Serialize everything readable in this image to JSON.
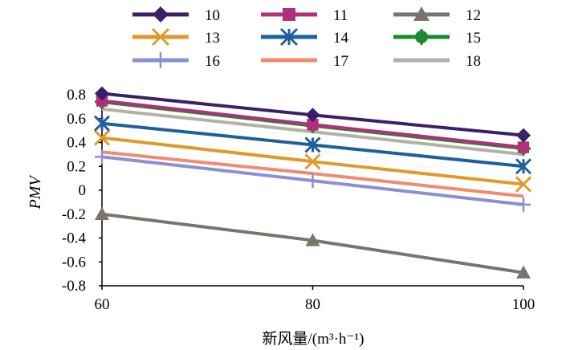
{
  "chart_data": {
    "type": "line",
    "title": "",
    "xlabel": "新风量/(m³·h⁻¹)",
    "ylabel": "PMV",
    "x": [
      60,
      80,
      100
    ],
    "xlim": [
      60,
      100
    ],
    "ylim": [
      -0.8,
      0.8
    ],
    "x_ticks": [
      "60",
      "80",
      "100"
    ],
    "y_ticks": [
      "0.8",
      "0.6",
      "0.4",
      "0.2",
      "0",
      "-0.2",
      "-0.4",
      "-0.6",
      "-0.8"
    ],
    "grid": false,
    "legend_position": "top",
    "series": [
      {
        "name": "10",
        "values": [
          0.81,
          0.63,
          0.46
        ],
        "color": "#3b1f6b",
        "marker": "diamond"
      },
      {
        "name": "11",
        "values": [
          0.75,
          0.55,
          0.36
        ],
        "color": "#b0307a",
        "marker": "square"
      },
      {
        "name": "12",
        "values": [
          -0.2,
          -0.42,
          -0.69
        ],
        "color": "#7a746c",
        "marker": "triangle"
      },
      {
        "name": "13",
        "values": [
          0.44,
          0.24,
          0.05
        ],
        "color": "#e09a2a",
        "marker": "x"
      },
      {
        "name": "14",
        "values": [
          0.56,
          0.38,
          0.2
        ],
        "color": "#1f5f9e",
        "marker": "asterisk"
      },
      {
        "name": "15",
        "values": [
          0.74,
          0.54,
          0.35
        ],
        "color": "#1a8a30",
        "marker": "circle-cross"
      },
      {
        "name": "16",
        "values": [
          0.28,
          0.08,
          -0.12
        ],
        "color": "#8a90d0",
        "marker": "plus"
      },
      {
        "name": "17",
        "values": [
          0.32,
          0.14,
          -0.05
        ],
        "color": "#f08a70",
        "marker": "none"
      },
      {
        "name": "18",
        "values": [
          0.68,
          0.49,
          0.3
        ],
        "color": "#b4b0a8",
        "marker": "none"
      }
    ]
  }
}
